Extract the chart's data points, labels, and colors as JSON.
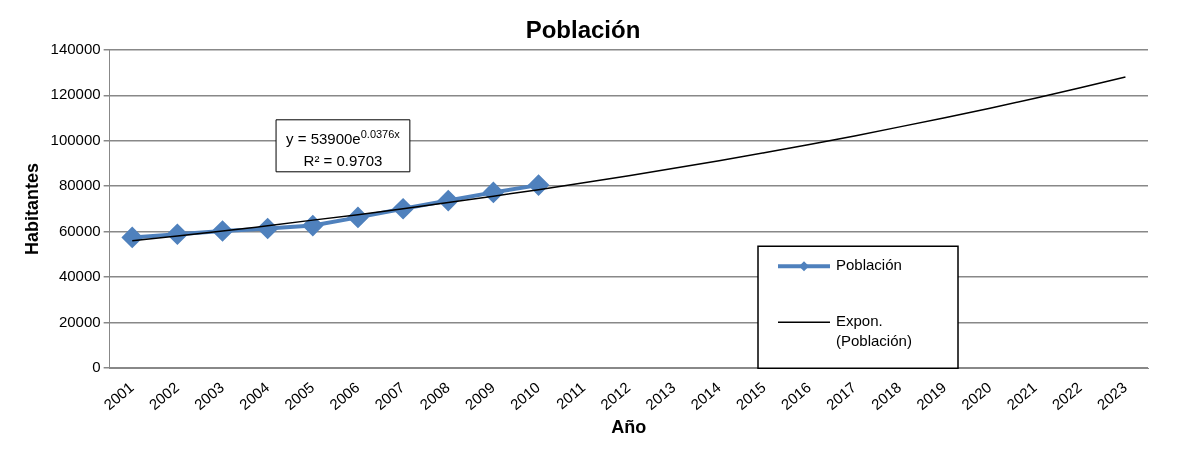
{
  "chart_data": {
    "type": "line",
    "title": "Población",
    "xlabel": "Año",
    "ylabel": "Habitantes",
    "categories": [
      "2001",
      "2002",
      "2003",
      "2004",
      "2005",
      "2006",
      "2007",
      "2008",
      "2009",
      "2010",
      "2011",
      "2012",
      "2013",
      "2014",
      "2015",
      "2016",
      "2017",
      "2018",
      "2019",
      "2020",
      "2021",
      "2022",
      "2023"
    ],
    "series": [
      {
        "name": "Población",
        "color": "#4f81bd",
        "marker": "diamond",
        "values": [
          57500,
          58900,
          60300,
          61400,
          62700,
          66300,
          70100,
          73700,
          77300,
          80500,
          null,
          null,
          null,
          null,
          null,
          null,
          null,
          null,
          null,
          null,
          null,
          null,
          null
        ]
      },
      {
        "name": "Expon. (Población)",
        "color": "#000000",
        "marker": "none",
        "values": [
          56000,
          58100,
          60300,
          62600,
          65100,
          67500,
          70100,
          72800,
          75600,
          78500,
          81500,
          84600,
          87900,
          91200,
          94700,
          98400,
          102100,
          106100,
          110100,
          114300,
          118700,
          123300,
          128000
        ]
      }
    ],
    "ylim": [
      0,
      140000
    ],
    "yticks": [
      0,
      20000,
      40000,
      60000,
      80000,
      100000,
      120000,
      140000
    ],
    "grid": "y",
    "legend": "bottom right",
    "annotations": [
      "y = 53900e$^{0.0376x}$",
      "R² = 0.9703"
    ]
  }
}
